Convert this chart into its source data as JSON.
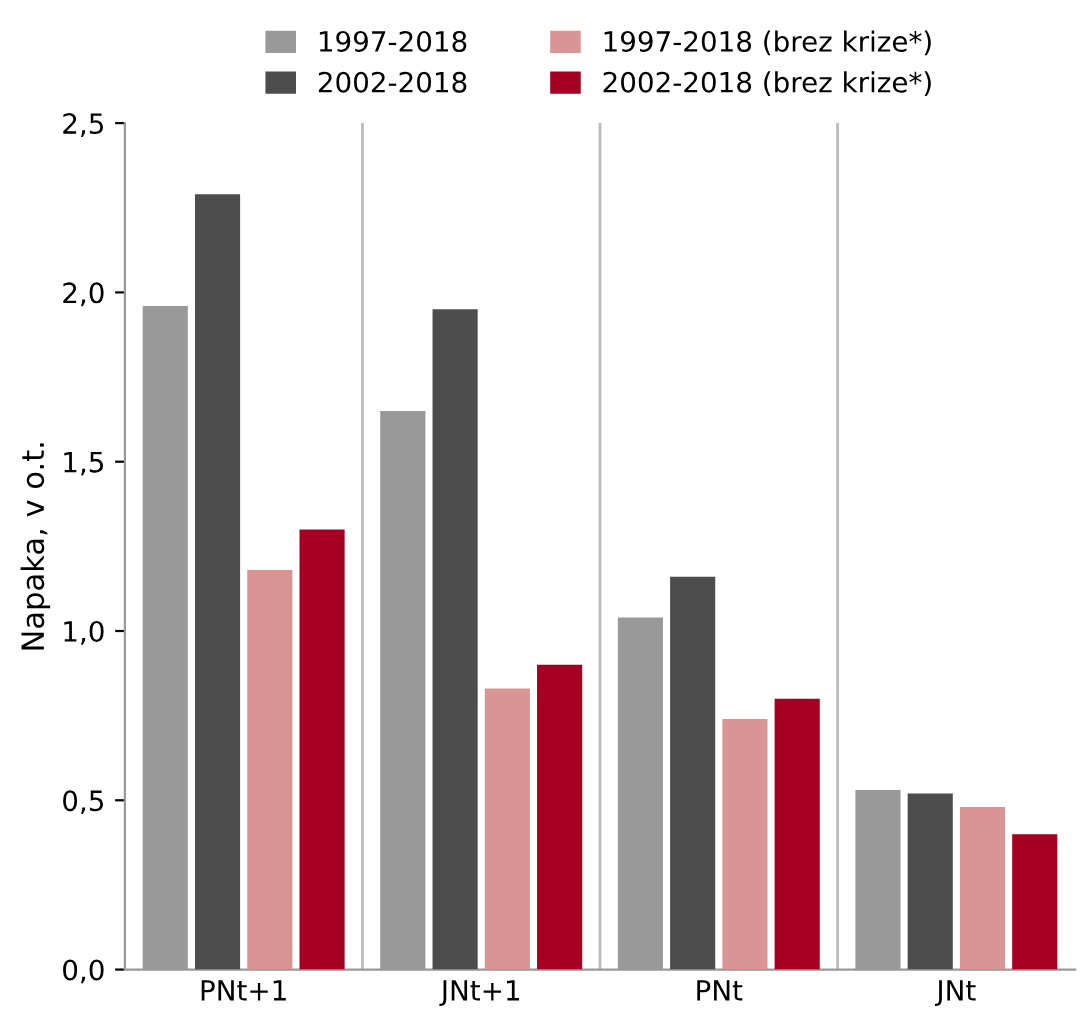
{
  "chart_data": {
    "type": "bar",
    "ylabel": "Napaka, v o.t.",
    "categories": [
      "PNt+1",
      "JNt+1",
      "PNt",
      "JNt"
    ],
    "series": [
      {
        "name": "1997-2018",
        "color": "#999999",
        "values": [
          1.96,
          1.65,
          1.04,
          0.53
        ]
      },
      {
        "name": "2002-2018",
        "color": "#4d4d4d",
        "values": [
          2.29,
          1.95,
          1.16,
          0.52
        ]
      },
      {
        "name": "1997-2018 (brez krize*)",
        "color": "#d99594",
        "values": [
          1.18,
          0.83,
          0.74,
          0.48
        ]
      },
      {
        "name": "2002-2018 (brez krize*)",
        "color": "#a50021",
        "values": [
          1.3,
          0.9,
          0.8,
          0.4
        ]
      }
    ],
    "ylim": [
      0,
      2.5
    ],
    "yticks": [
      {
        "value": 0,
        "label": "0,0"
      },
      {
        "value": 0.5,
        "label": "0,5"
      },
      {
        "value": 1,
        "label": "1,0"
      },
      {
        "value": 1.5,
        "label": "1,5"
      },
      {
        "value": 2,
        "label": "2,0"
      },
      {
        "value": 2.5,
        "label": "2,5"
      }
    ],
    "grid": "x",
    "legend": "top"
  }
}
